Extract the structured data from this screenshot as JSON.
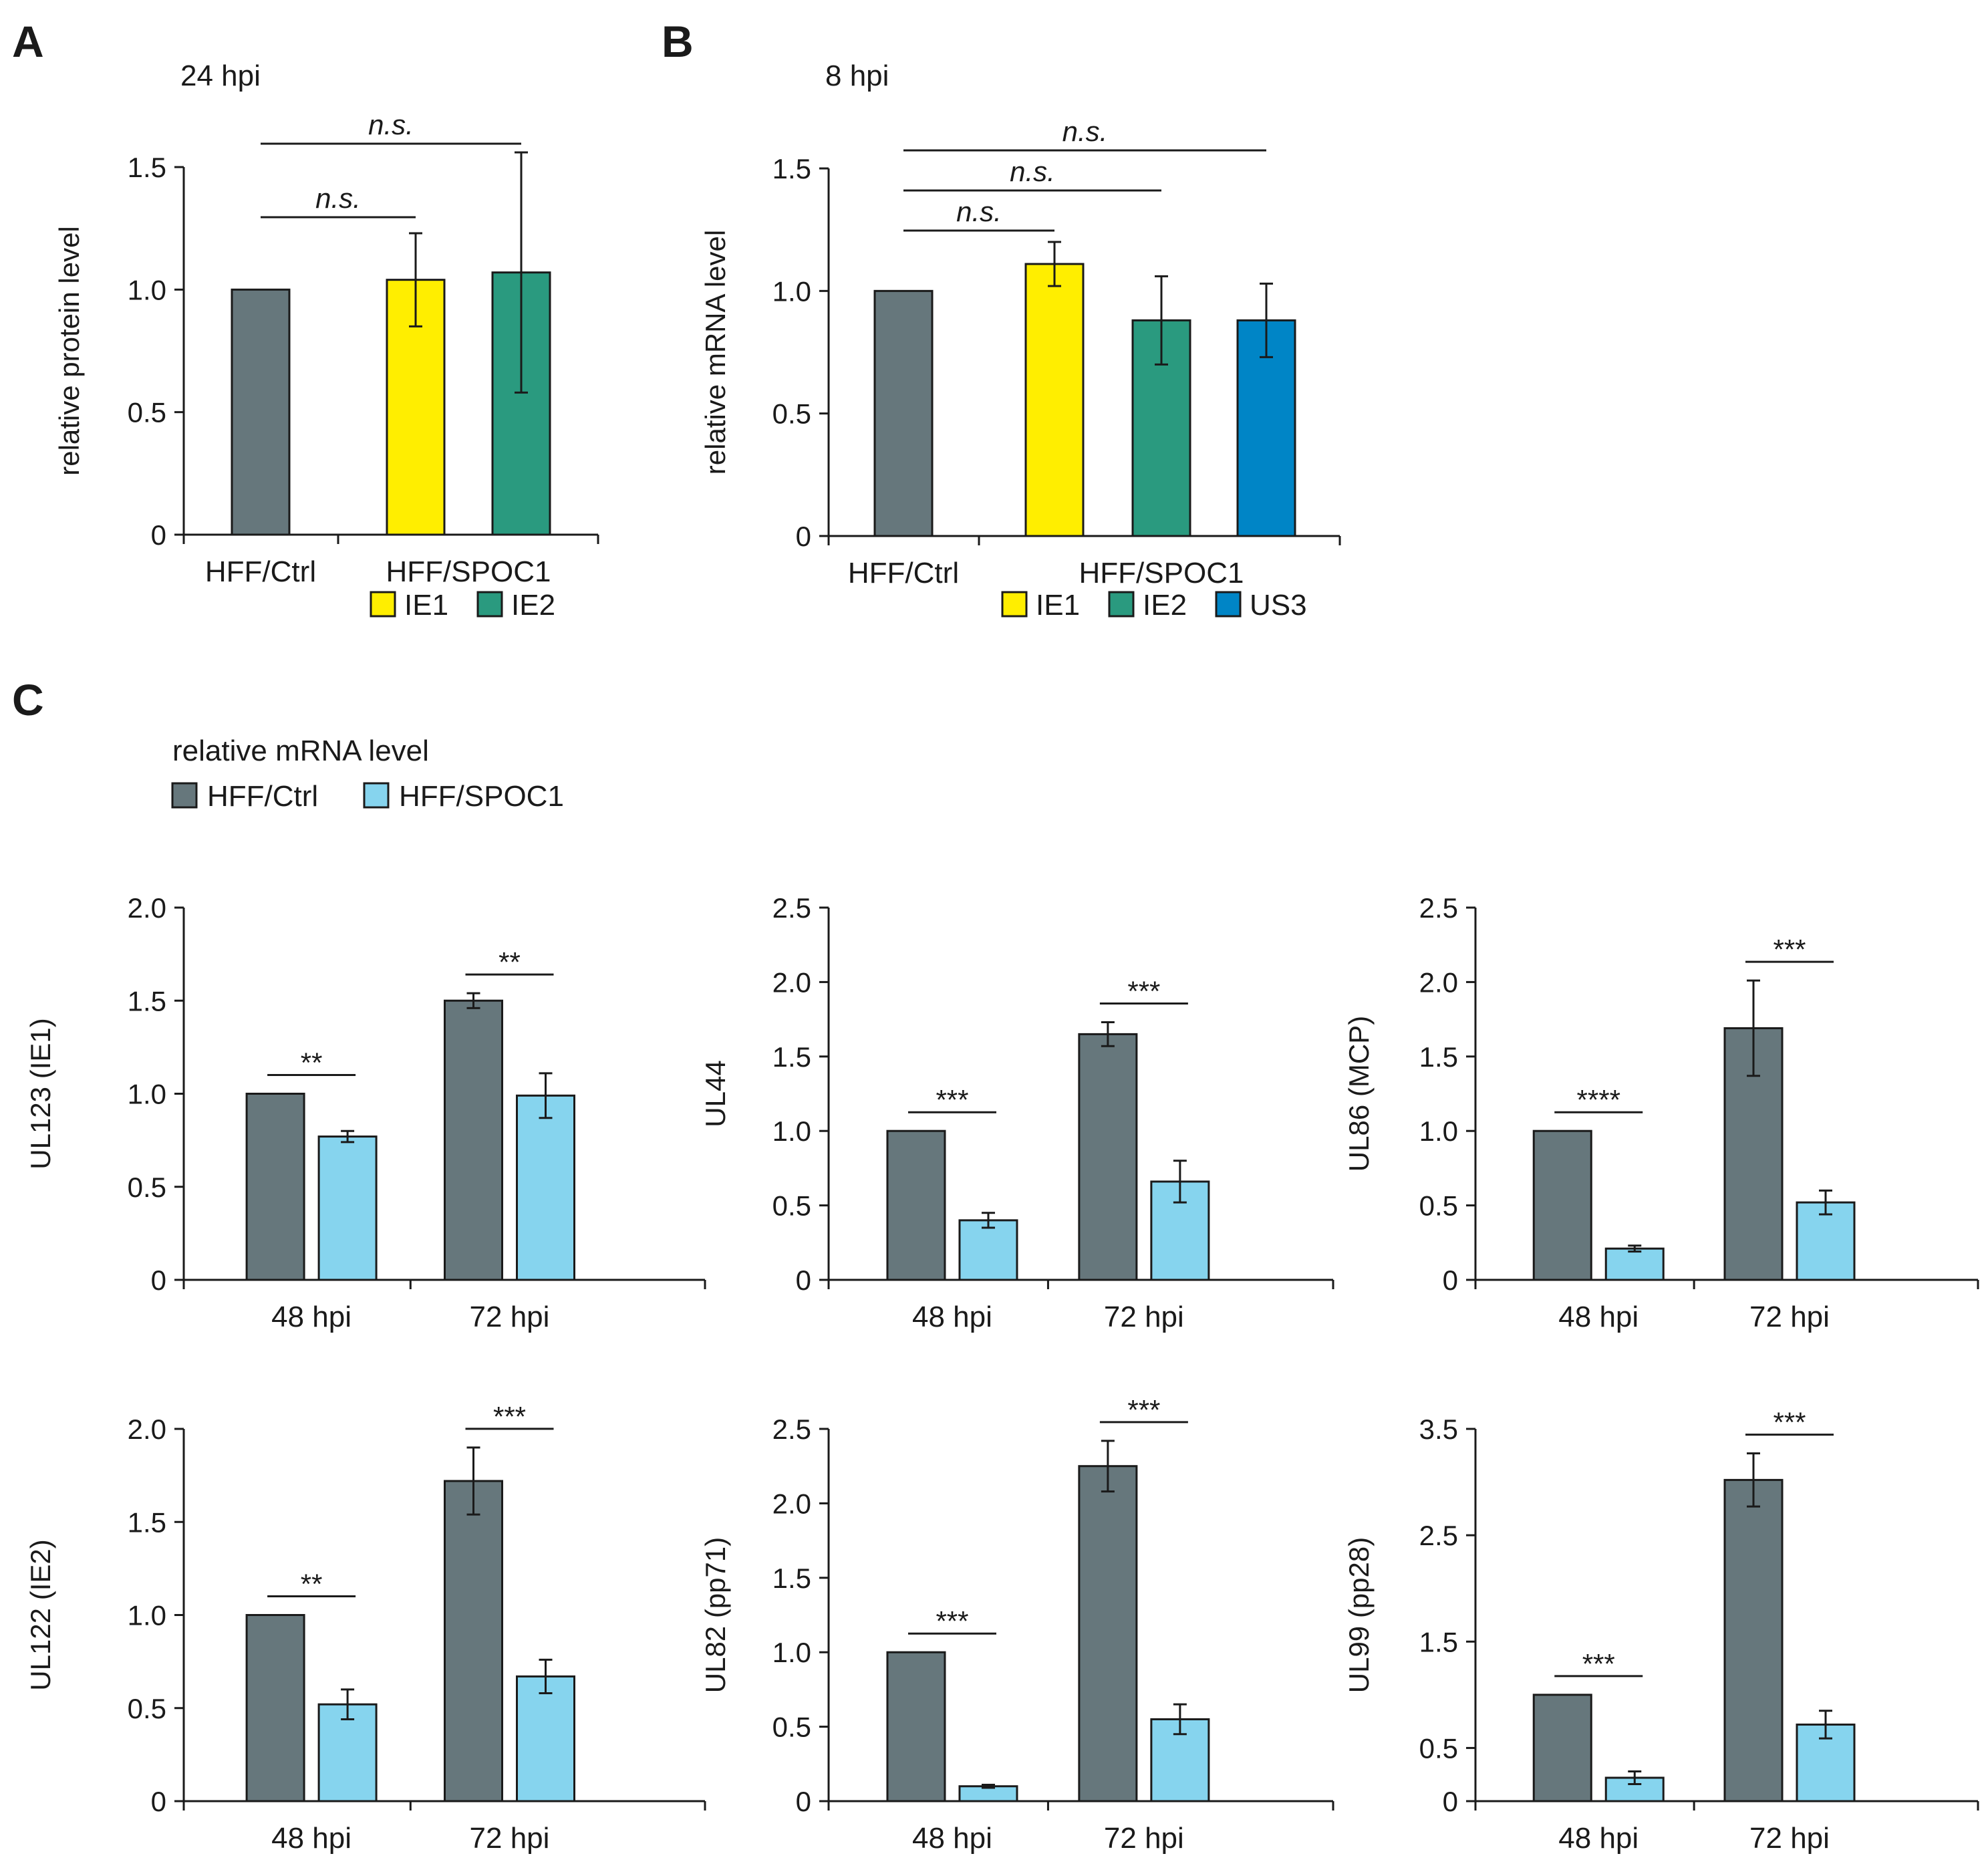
{
  "colors": {
    "ctrl": "#66777c",
    "ie1": "#ffee00",
    "ie2": "#2a9a7f",
    "us3": "#0085c6",
    "spoc1": "#86d4ee",
    "axis": "#1a1a1a"
  },
  "panel_letters": [
    "A",
    "B",
    "C"
  ],
  "panel_c_header": {
    "title": "relative mRNA level",
    "legend": [
      {
        "label": "HFF/Ctrl",
        "color": "#66777c"
      },
      {
        "label": "HFF/SPOC1",
        "color": "#86d4ee"
      }
    ]
  },
  "chart_data": [
    {
      "id": "A",
      "type": "bar",
      "condition": "24 hpi",
      "ylabel": "relative protein level",
      "ylim": [
        0,
        1.5
      ],
      "yticks": [
        "0",
        "0.5",
        "1.0",
        "1.5"
      ],
      "groups": [
        "HFF/Ctrl",
        "HFF/SPOC1"
      ],
      "bars": [
        {
          "label": "HFF/Ctrl",
          "group": "HFF/Ctrl",
          "value": 1.0,
          "err": 0,
          "color": "#66777c"
        },
        {
          "label": "IE1",
          "group": "HFF/SPOC1",
          "value": 1.04,
          "err": 0.19,
          "color": "#ffee00"
        },
        {
          "label": "IE2",
          "group": "HFF/SPOC1",
          "value": 1.07,
          "err": 0.49,
          "color": "#2a9a7f"
        }
      ],
      "legend": [
        {
          "label": "IE1",
          "color": "#ffee00"
        },
        {
          "label": "IE2",
          "color": "#2a9a7f"
        }
      ],
      "significance": [
        {
          "text": "n.s.",
          "from": 0,
          "to": 1
        },
        {
          "text": "n.s.",
          "from": 0,
          "to": 2
        }
      ]
    },
    {
      "id": "B",
      "type": "bar",
      "condition": "8 hpi",
      "ylabel": "relative mRNA level",
      "ylim": [
        0,
        1.5
      ],
      "yticks": [
        "0",
        "0.5",
        "1.0",
        "1.5"
      ],
      "groups": [
        "HFF/Ctrl",
        "HFF/SPOC1"
      ],
      "bars": [
        {
          "label": "HFF/Ctrl",
          "group": "HFF/Ctrl",
          "value": 1.0,
          "err": 0,
          "color": "#66777c"
        },
        {
          "label": "IE1",
          "group": "HFF/SPOC1",
          "value": 1.11,
          "err": 0.09,
          "color": "#ffee00"
        },
        {
          "label": "IE2",
          "group": "HFF/SPOC1",
          "value": 0.88,
          "err": 0.18,
          "color": "#2a9a7f"
        },
        {
          "label": "US3",
          "group": "HFF/SPOC1",
          "value": 0.88,
          "err": 0.15,
          "color": "#0085c6"
        }
      ],
      "legend": [
        {
          "label": "IE1",
          "color": "#ffee00"
        },
        {
          "label": "IE2",
          "color": "#2a9a7f"
        },
        {
          "label": "US3",
          "color": "#0085c6"
        }
      ],
      "significance": [
        {
          "text": "n.s.",
          "from": 0,
          "to": 1
        },
        {
          "text": "n.s.",
          "from": 0,
          "to": 2
        },
        {
          "text": "n.s.",
          "from": 0,
          "to": 3
        }
      ]
    },
    {
      "id": "C1",
      "type": "bar",
      "ylabel": "UL123 (IE1)",
      "ylim": [
        0,
        2.0
      ],
      "yticks": [
        "0",
        "0.5",
        "1.0",
        "1.5",
        "2.0"
      ],
      "categories": [
        "48 hpi",
        "72 hpi"
      ],
      "series": [
        {
          "name": "HFF/Ctrl",
          "values": [
            1.0,
            1.5
          ],
          "errors": [
            0,
            0.04
          ]
        },
        {
          "name": "HFF/SPOC1",
          "values": [
            0.77,
            0.99
          ],
          "errors": [
            0.03,
            0.12
          ]
        }
      ],
      "significance": [
        "**",
        "**"
      ]
    },
    {
      "id": "C2",
      "type": "bar",
      "ylabel": "UL44",
      "ylim": [
        0,
        2.5
      ],
      "yticks": [
        "0",
        "0.5",
        "1.0",
        "1.5",
        "2.0",
        "2.5"
      ],
      "categories": [
        "48 hpi",
        "72 hpi"
      ],
      "series": [
        {
          "name": "HFF/Ctrl",
          "values": [
            1.0,
            1.65
          ],
          "errors": [
            0,
            0.08
          ]
        },
        {
          "name": "HFF/SPOC1",
          "values": [
            0.4,
            0.66
          ],
          "errors": [
            0.05,
            0.14
          ]
        }
      ],
      "significance": [
        "***",
        "***"
      ]
    },
    {
      "id": "C3",
      "type": "bar",
      "ylabel": "UL86 (MCP)",
      "ylim": [
        0,
        2.5
      ],
      "yticks": [
        "0",
        "0.5",
        "1.0",
        "1.5",
        "2.0",
        "2.5"
      ],
      "categories": [
        "48 hpi",
        "72 hpi"
      ],
      "series": [
        {
          "name": "HFF/Ctrl",
          "values": [
            1.0,
            1.69
          ],
          "errors": [
            0,
            0.32
          ]
        },
        {
          "name": "HFF/SPOC1",
          "values": [
            0.21,
            0.52
          ],
          "errors": [
            0.02,
            0.08
          ]
        }
      ],
      "significance": [
        "****",
        "***"
      ]
    },
    {
      "id": "C4",
      "type": "bar",
      "ylabel": "UL122 (IE2)",
      "ylim": [
        0,
        2.0
      ],
      "yticks": [
        "0",
        "0.5",
        "1.0",
        "1.5",
        "2.0"
      ],
      "categories": [
        "48 hpi",
        "72 hpi"
      ],
      "series": [
        {
          "name": "HFF/Ctrl",
          "values": [
            1.0,
            1.72
          ],
          "errors": [
            0,
            0.18
          ]
        },
        {
          "name": "HFF/SPOC1",
          "values": [
            0.52,
            0.67
          ],
          "errors": [
            0.08,
            0.09
          ]
        }
      ],
      "significance": [
        "**",
        "***"
      ]
    },
    {
      "id": "C5",
      "type": "bar",
      "ylabel": "UL82 (pp71)",
      "ylim": [
        0,
        2.5
      ],
      "yticks": [
        "0",
        "0.5",
        "1.0",
        "1.5",
        "2.0",
        "2.5"
      ],
      "categories": [
        "48 hpi",
        "72 hpi"
      ],
      "series": [
        {
          "name": "HFF/Ctrl",
          "values": [
            1.0,
            2.25
          ],
          "errors": [
            0,
            0.17
          ]
        },
        {
          "name": "HFF/SPOC1",
          "values": [
            0.1,
            0.55
          ],
          "errors": [
            0.01,
            0.1
          ]
        }
      ],
      "significance": [
        "***",
        "***"
      ]
    },
    {
      "id": "C6",
      "type": "bar",
      "ylabel": "UL99 (pp28)",
      "ylim": [
        0,
        3.5
      ],
      "yticks": [
        "0",
        "0.5",
        "1.5",
        "2.5",
        "3.5"
      ],
      "ytick_values": [
        0,
        0.5,
        1.5,
        2.5,
        3.5
      ],
      "categories": [
        "48 hpi",
        "72 hpi"
      ],
      "series": [
        {
          "name": "HFF/Ctrl",
          "values": [
            1.0,
            3.02
          ],
          "errors": [
            0,
            0.25
          ]
        },
        {
          "name": "HFF/SPOC1",
          "values": [
            0.22,
            0.72
          ],
          "errors": [
            0.06,
            0.13
          ]
        }
      ],
      "significance": [
        "***",
        "***"
      ]
    }
  ]
}
